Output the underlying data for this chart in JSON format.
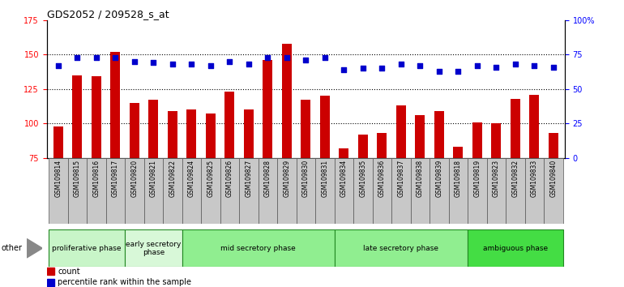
{
  "title": "GDS2052 / 209528_s_at",
  "samples": [
    "GSM109814",
    "GSM109815",
    "GSM109816",
    "GSM109817",
    "GSM109820",
    "GSM109821",
    "GSM109822",
    "GSM109824",
    "GSM109825",
    "GSM109826",
    "GSM109827",
    "GSM109828",
    "GSM109829",
    "GSM109830",
    "GSM109831",
    "GSM109834",
    "GSM109835",
    "GSM109836",
    "GSM109837",
    "GSM109838",
    "GSM109839",
    "GSM109818",
    "GSM109819",
    "GSM109823",
    "GSM109832",
    "GSM109833",
    "GSM109840"
  ],
  "counts": [
    98,
    135,
    134,
    152,
    115,
    117,
    109,
    110,
    107,
    123,
    110,
    146,
    158,
    117,
    120,
    82,
    92,
    93,
    113,
    106,
    109,
    83,
    101,
    100,
    118,
    121,
    93
  ],
  "percentiles": [
    67,
    73,
    73,
    73,
    70,
    69,
    68,
    68,
    67,
    70,
    68,
    73,
    73,
    71,
    73,
    64,
    65,
    65,
    68,
    67,
    63,
    63,
    67,
    66,
    68,
    67,
    66
  ],
  "bar_color": "#cc0000",
  "dot_color": "#0000cc",
  "ymin": 75,
  "ymax": 175,
  "y_ticks": [
    75,
    100,
    125,
    150,
    175
  ],
  "y2min": 0,
  "y2max": 100,
  "y2_ticks": [
    0,
    25,
    50,
    75,
    100
  ],
  "y2_labels": [
    "0",
    "25",
    "50",
    "75",
    "100%"
  ],
  "phases": [
    {
      "label": "proliferative phase",
      "start": 0,
      "end": 4,
      "color": "#c8f5c8"
    },
    {
      "label": "early secretory\nphase",
      "start": 4,
      "end": 7,
      "color": "#d8f8d8"
    },
    {
      "label": "mid secretory phase",
      "start": 7,
      "end": 15,
      "color": "#90ee90"
    },
    {
      "label": "late secretory phase",
      "start": 15,
      "end": 22,
      "color": "#90ee90"
    },
    {
      "label": "ambiguous phase",
      "start": 22,
      "end": 27,
      "color": "#44dd44"
    }
  ],
  "other_label": "other",
  "plot_bg": "#ffffff",
  "fig_bg": "#ffffff",
  "tick_bg": "#d0d0d0",
  "grid_color": "#000000",
  "border_color": "#000000"
}
